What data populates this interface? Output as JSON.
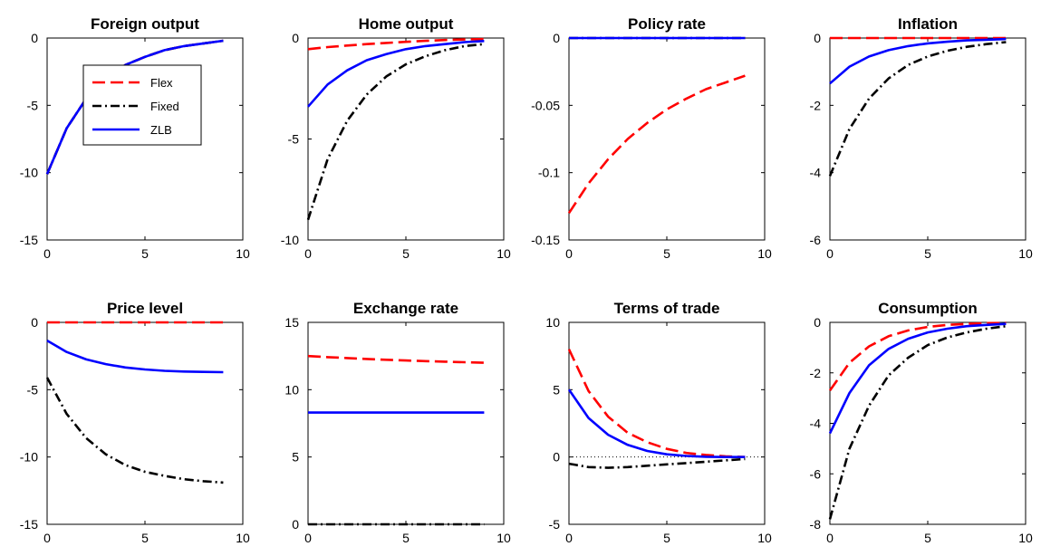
{
  "chart_data": [
    {
      "type": "line",
      "title": "Foreign output",
      "xlim": [
        0,
        10
      ],
      "ylim": [
        -15,
        0
      ],
      "xticks": [
        "0",
        "5",
        "10"
      ],
      "yticks": [
        "-15",
        "-10",
        "-5",
        "0"
      ],
      "x": [
        0,
        1,
        2,
        3,
        4,
        5,
        6,
        7,
        8,
        9
      ],
      "series": [
        {
          "name": "Flex",
          "style": "dash",
          "color": "#ff0000",
          "values": [
            -10.1,
            -6.7,
            -4.5,
            -3.0,
            -2.0,
            -1.4,
            -0.9,
            -0.6,
            -0.4,
            -0.2
          ]
        },
        {
          "name": "Fixed",
          "style": "dashdot",
          "color": "#000000",
          "values": [
            -10.1,
            -6.7,
            -4.5,
            -3.0,
            -2.0,
            -1.4,
            -0.9,
            -0.6,
            -0.4,
            -0.2
          ]
        },
        {
          "name": "ZLB",
          "style": "solid",
          "color": "#0000ff",
          "values": [
            -10.1,
            -6.7,
            -4.5,
            -3.0,
            -2.0,
            -1.4,
            -0.9,
            -0.6,
            -0.4,
            -0.2
          ]
        }
      ],
      "legend": {
        "position": "center-left",
        "entries": [
          "Flex",
          "Fixed",
          "ZLB"
        ]
      }
    },
    {
      "type": "line",
      "title": "Home output",
      "xlim": [
        0,
        10
      ],
      "ylim": [
        -10,
        0
      ],
      "xticks": [
        "0",
        "5",
        "10"
      ],
      "yticks": [
        "-10",
        "-5",
        "0"
      ],
      "x": [
        0,
        1,
        2,
        3,
        4,
        5,
        6,
        7,
        8,
        9
      ],
      "series": [
        {
          "name": "Flex",
          "style": "dash",
          "color": "#ff0000",
          "values": [
            -0.55,
            -0.45,
            -0.37,
            -0.3,
            -0.24,
            -0.19,
            -0.14,
            -0.1,
            -0.07,
            -0.05
          ]
        },
        {
          "name": "Fixed",
          "style": "dashdot",
          "color": "#000000",
          "values": [
            -9.0,
            -6.0,
            -4.1,
            -2.8,
            -1.9,
            -1.3,
            -0.9,
            -0.6,
            -0.4,
            -0.3
          ]
        },
        {
          "name": "ZLB",
          "style": "solid",
          "color": "#0000ff",
          "values": [
            -3.4,
            -2.3,
            -1.6,
            -1.1,
            -0.8,
            -0.55,
            -0.4,
            -0.3,
            -0.2,
            -0.15
          ]
        }
      ]
    },
    {
      "type": "line",
      "title": "Policy rate",
      "xlim": [
        0,
        10
      ],
      "ylim": [
        -0.15,
        0
      ],
      "xticks": [
        "0",
        "5",
        "10"
      ],
      "yticks": [
        "-0.15",
        "-0.1",
        "-0.05",
        "0"
      ],
      "x": [
        0,
        1,
        2,
        3,
        4,
        5,
        6,
        7,
        8,
        9
      ],
      "series": [
        {
          "name": "Flex",
          "style": "dash",
          "color": "#ff0000",
          "values": [
            -0.13,
            -0.108,
            -0.09,
            -0.075,
            -0.063,
            -0.053,
            -0.045,
            -0.038,
            -0.033,
            -0.028
          ]
        },
        {
          "name": "Fixed",
          "style": "dashdot",
          "color": "#000000",
          "values": [
            0,
            0,
            0,
            0,
            0,
            0,
            0,
            0,
            0,
            0
          ]
        },
        {
          "name": "ZLB",
          "style": "solid",
          "color": "#0000ff",
          "values": [
            0,
            0,
            0,
            0,
            0,
            0,
            0,
            0,
            0,
            0
          ]
        }
      ]
    },
    {
      "type": "line",
      "title": "Inflation",
      "xlim": [
        0,
        10
      ],
      "ylim": [
        -6,
        0
      ],
      "xticks": [
        "0",
        "5",
        "10"
      ],
      "yticks": [
        "-6",
        "-4",
        "-2",
        "0"
      ],
      "x": [
        0,
        1,
        2,
        3,
        4,
        5,
        6,
        7,
        8,
        9
      ],
      "series": [
        {
          "name": "Flex",
          "style": "dash",
          "color": "#ff0000",
          "values": [
            0,
            0,
            0,
            0,
            0,
            0,
            0,
            0,
            0,
            0
          ]
        },
        {
          "name": "Fixed",
          "style": "dashdot",
          "color": "#000000",
          "values": [
            -4.1,
            -2.7,
            -1.8,
            -1.2,
            -0.8,
            -0.55,
            -0.38,
            -0.26,
            -0.18,
            -0.12
          ]
        },
        {
          "name": "ZLB",
          "style": "solid",
          "color": "#0000ff",
          "values": [
            -1.35,
            -0.85,
            -0.55,
            -0.36,
            -0.24,
            -0.16,
            -0.11,
            -0.07,
            -0.05,
            -0.03
          ]
        }
      ]
    },
    {
      "type": "line",
      "title": "Price level",
      "xlim": [
        0,
        10
      ],
      "ylim": [
        -15,
        0
      ],
      "xticks": [
        "0",
        "5",
        "10"
      ],
      "yticks": [
        "-15",
        "-10",
        "-5",
        "0"
      ],
      "x": [
        0,
        1,
        2,
        3,
        4,
        5,
        6,
        7,
        8,
        9
      ],
      "series": [
        {
          "name": "Flex",
          "style": "dash",
          "color": "#ff0000",
          "values": [
            0,
            0,
            0,
            0,
            0,
            0,
            0,
            0,
            0,
            0
          ]
        },
        {
          "name": "Fixed",
          "style": "dashdot",
          "color": "#000000",
          "values": [
            -4.1,
            -6.8,
            -8.6,
            -9.8,
            -10.6,
            -11.1,
            -11.4,
            -11.65,
            -11.8,
            -11.9
          ]
        },
        {
          "name": "ZLB",
          "style": "solid",
          "color": "#0000ff",
          "values": [
            -1.35,
            -2.2,
            -2.75,
            -3.1,
            -3.35,
            -3.5,
            -3.6,
            -3.65,
            -3.68,
            -3.7
          ]
        }
      ]
    },
    {
      "type": "line",
      "title": "Exchange rate",
      "xlim": [
        0,
        10
      ],
      "ylim": [
        0,
        15
      ],
      "xticks": [
        "0",
        "5",
        "10"
      ],
      "yticks": [
        "0",
        "5",
        "10",
        "15"
      ],
      "x": [
        0,
        1,
        2,
        3,
        4,
        5,
        6,
        7,
        8,
        9
      ],
      "series": [
        {
          "name": "Flex",
          "style": "dash",
          "color": "#ff0000",
          "values": [
            12.5,
            12.42,
            12.35,
            12.28,
            12.22,
            12.17,
            12.12,
            12.08,
            12.04,
            12.0
          ]
        },
        {
          "name": "Fixed",
          "style": "dashdot",
          "color": "#000000",
          "values": [
            0,
            0,
            0,
            0,
            0,
            0,
            0,
            0,
            0,
            0
          ]
        },
        {
          "name": "ZLB",
          "style": "solid",
          "color": "#0000ff",
          "values": [
            8.3,
            8.3,
            8.3,
            8.3,
            8.3,
            8.3,
            8.3,
            8.3,
            8.3,
            8.3
          ]
        }
      ]
    },
    {
      "type": "line",
      "title": "Terms of trade",
      "xlim": [
        0,
        10
      ],
      "ylim": [
        -5,
        10
      ],
      "xticks": [
        "0",
        "5",
        "10"
      ],
      "yticks": [
        "-5",
        "0",
        "5",
        "10"
      ],
      "x": [
        0,
        1,
        2,
        3,
        4,
        5,
        6,
        7,
        8,
        9
      ],
      "series": [
        {
          "name": "Flex",
          "style": "dash",
          "color": "#ff0000",
          "values": [
            8.0,
            4.9,
            3.0,
            1.8,
            1.1,
            0.6,
            0.3,
            0.15,
            0.05,
            0.0
          ]
        },
        {
          "name": "Fixed",
          "style": "dashdot",
          "color": "#000000",
          "values": [
            -0.5,
            -0.75,
            -0.8,
            -0.75,
            -0.65,
            -0.55,
            -0.45,
            -0.35,
            -0.25,
            -0.15
          ]
        },
        {
          "name": "ZLB",
          "style": "solid",
          "color": "#0000ff",
          "values": [
            5.0,
            2.9,
            1.65,
            0.9,
            0.45,
            0.2,
            0.08,
            0.02,
            0.0,
            0.0
          ]
        }
      ]
    },
    {
      "type": "line",
      "title": "Consumption",
      "xlim": [
        0,
        10
      ],
      "ylim": [
        -8,
        0
      ],
      "xticks": [
        "0",
        "5",
        "10"
      ],
      "yticks": [
        "-8",
        "-6",
        "-4",
        "-2",
        "0"
      ],
      "x": [
        0,
        1,
        2,
        3,
        4,
        5,
        6,
        7,
        8,
        9
      ],
      "series": [
        {
          "name": "Flex",
          "style": "dash",
          "color": "#ff0000",
          "values": [
            -2.7,
            -1.6,
            -0.95,
            -0.55,
            -0.32,
            -0.18,
            -0.1,
            -0.06,
            -0.03,
            -0.02
          ]
        },
        {
          "name": "Fixed",
          "style": "dashdot",
          "color": "#000000",
          "values": [
            -7.8,
            -5.0,
            -3.3,
            -2.1,
            -1.4,
            -0.9,
            -0.6,
            -0.4,
            -0.25,
            -0.15
          ]
        },
        {
          "name": "ZLB",
          "style": "solid",
          "color": "#0000ff",
          "values": [
            -4.4,
            -2.8,
            -1.7,
            -1.05,
            -0.65,
            -0.4,
            -0.25,
            -0.15,
            -0.1,
            -0.06
          ]
        }
      ]
    }
  ]
}
